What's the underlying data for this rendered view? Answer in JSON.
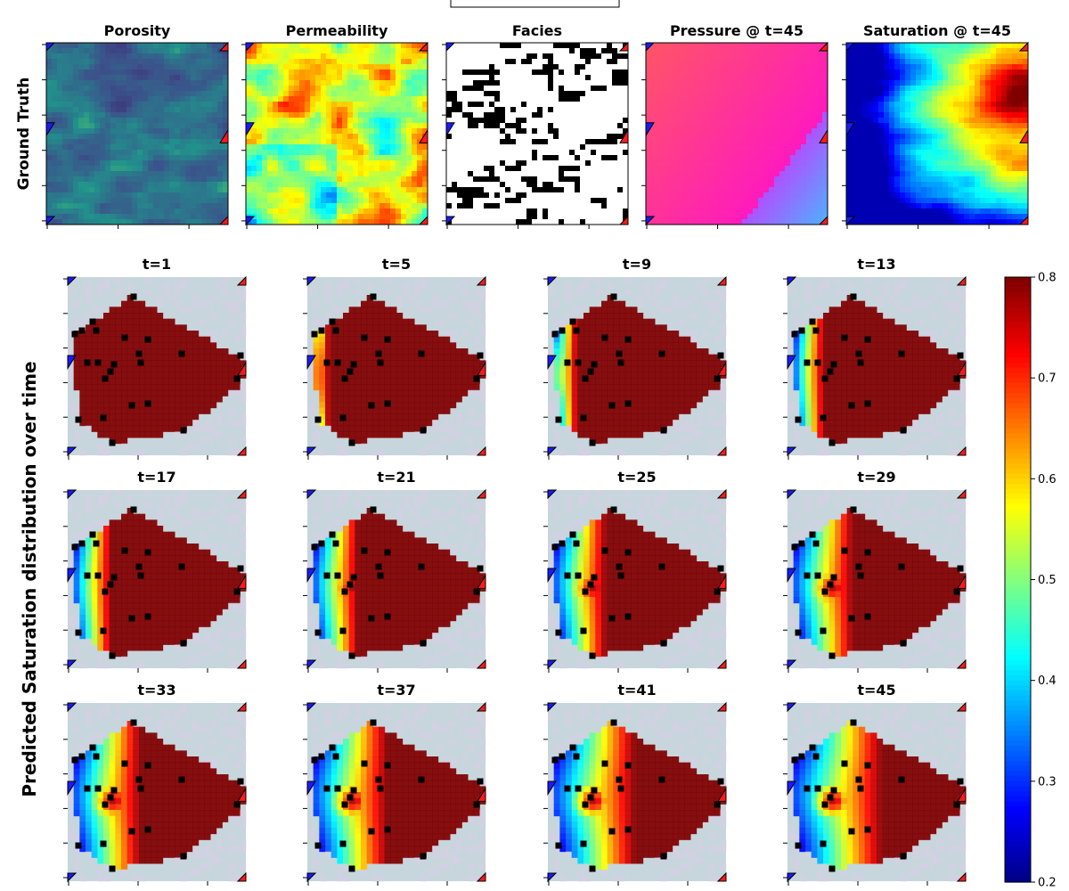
{
  "chart_data": {
    "type": "heatmap",
    "ground_truth": {
      "row_label": "Ground Truth",
      "panels": [
        {
          "title": "Porosity",
          "field": "porosity"
        },
        {
          "title": "Permeability",
          "field": "permeability"
        },
        {
          "title": "Facies",
          "field": "facies"
        },
        {
          "title": "Pressure @ t=45",
          "field": "pressure"
        },
        {
          "title": "Saturation @ t=45",
          "field": "saturation"
        }
      ]
    },
    "prediction": {
      "row_label": "Predicted Saturation distribution over time",
      "timesteps": [
        {
          "title": "t=1",
          "t": 1
        },
        {
          "title": "t=5",
          "t": 5
        },
        {
          "title": "t=9",
          "t": 9
        },
        {
          "title": "t=13",
          "t": 13
        },
        {
          "title": "t=17",
          "t": 17
        },
        {
          "title": "t=21",
          "t": 21
        },
        {
          "title": "t=25",
          "t": 25
        },
        {
          "title": "t=29",
          "t": 29
        },
        {
          "title": "t=33",
          "t": 33
        },
        {
          "title": "t=37",
          "t": 37
        },
        {
          "title": "t=41",
          "t": 41
        },
        {
          "title": "t=45",
          "t": 45
        }
      ],
      "colorbar": {
        "min": 0.2,
        "max": 0.8,
        "colormap": "jet",
        "ticks": [
          "0.2",
          "0.3",
          "0.4",
          "0.5",
          "0.6",
          "0.7",
          "0.8"
        ]
      }
    },
    "monitoring_wells": [
      [
        0.37,
        0.11
      ],
      [
        0.14,
        0.25
      ],
      [
        0.04,
        0.32
      ],
      [
        0.08,
        0.3
      ],
      [
        0.16,
        0.3
      ],
      [
        0.32,
        0.34
      ],
      [
        0.45,
        0.35
      ],
      [
        0.4,
        0.43
      ],
      [
        0.11,
        0.48
      ],
      [
        0.17,
        0.48
      ],
      [
        0.41,
        0.48
      ],
      [
        0.26,
        0.49
      ],
      [
        0.24,
        0.53
      ],
      [
        0.21,
        0.57
      ],
      [
        0.64,
        0.43
      ],
      [
        0.97,
        0.44
      ],
      [
        0.95,
        0.57
      ],
      [
        0.36,
        0.72
      ],
      [
        0.45,
        0.71
      ],
      [
        0.06,
        0.8
      ],
      [
        0.2,
        0.79
      ],
      [
        0.65,
        0.86
      ],
      [
        0.25,
        0.93
      ]
    ],
    "injector_markers": "blue triangles (left edge)",
    "producer_markers": "red triangles (right edge)",
    "grid": false
  }
}
